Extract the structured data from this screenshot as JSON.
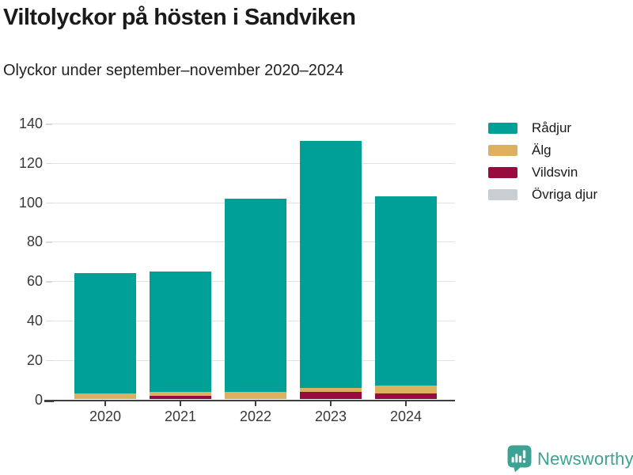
{
  "header": {
    "title": "Viltolyckor på hösten i Sandviken",
    "subtitle": "Olyckor under september–november 2020–2024"
  },
  "chart_data": {
    "type": "bar",
    "stacked": true,
    "categories": [
      "2020",
      "2021",
      "2022",
      "2023",
      "2024"
    ],
    "series": [
      {
        "name": "Rådjur",
        "color": "#00a096",
        "values": [
          61,
          61,
          98,
          125,
          96
        ]
      },
      {
        "name": "Älg",
        "color": "#ddb05f",
        "values": [
          3,
          2,
          4,
          2,
          4
        ]
      },
      {
        "name": "Vildsvin",
        "color": "#970b3e",
        "values": [
          0,
          2,
          0,
          4,
          3
        ]
      },
      {
        "name": "Övriga djur",
        "color": "#c9ced3",
        "values": [
          0,
          0,
          0,
          0,
          0
        ]
      }
    ],
    "totals": [
      64,
      65,
      102,
      131,
      103
    ],
    "title": "Viltolyckor på hösten i Sandviken",
    "xlabel": "",
    "ylabel": "",
    "ylim": [
      0,
      140
    ],
    "yticks": [
      0,
      20,
      40,
      60,
      80,
      100,
      120,
      140
    ],
    "grid": true,
    "legend_position": "top-right",
    "stack_order_bottom_to_top": [
      "Övriga djur",
      "Vildsvin",
      "Älg",
      "Rådjur"
    ]
  },
  "colors": {
    "axis": "#3f3f3f",
    "gridline": "#e2e2e2",
    "text": "#383838",
    "brand": "#3da193"
  },
  "footer": {
    "brand": "Newsworthy"
  }
}
